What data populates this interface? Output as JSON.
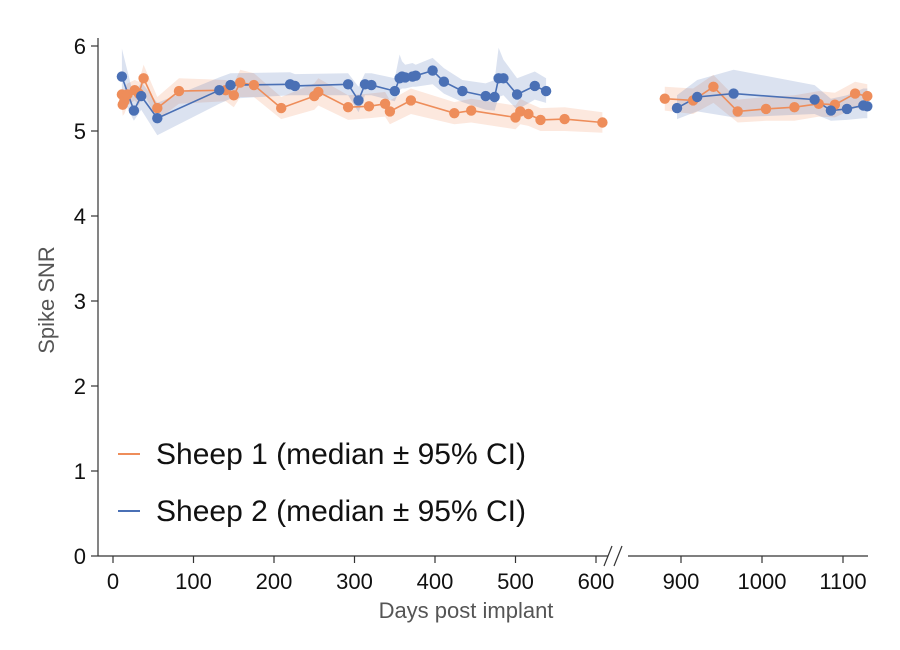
{
  "chart_data": {
    "type": "line",
    "xlabel": "Days post implant",
    "ylabel": "Spike SNR",
    "ylim": [
      0,
      6
    ],
    "yticks": [
      0,
      1,
      2,
      3,
      4,
      5,
      6
    ],
    "x_break": {
      "after": 620,
      "resume": 850
    },
    "xticks_left": [
      0,
      100,
      200,
      300,
      400,
      500,
      600
    ],
    "xticks_right": [
      900,
      1000,
      1100
    ],
    "xlim_left": [
      -10,
      620
    ],
    "xlim_right": [
      850,
      1135
    ],
    "grid": false,
    "legend_position": "bottom-left",
    "colors": {
      "sheep1": "#ee8d5a",
      "sheep2": "#4a70b5",
      "axis": "#333333"
    },
    "series": [
      {
        "name": "Sheep 1 (median ± 95% CI)",
        "color": "#ee8d5a",
        "points": [
          [
            11,
            5.43
          ],
          [
            12,
            5.31
          ],
          [
            14,
            5.35
          ],
          [
            18,
            5.43
          ],
          [
            27,
            5.48
          ],
          [
            32,
            5.44
          ],
          [
            38,
            5.62
          ],
          [
            55,
            5.27
          ],
          [
            82,
            5.47
          ],
          [
            140,
            5.48
          ],
          [
            150,
            5.42
          ],
          [
            158,
            5.57
          ],
          [
            175,
            5.54
          ],
          [
            209,
            5.27
          ],
          [
            250,
            5.41
          ],
          [
            255,
            5.46
          ],
          [
            292,
            5.28
          ],
          [
            318,
            5.29
          ],
          [
            338,
            5.32
          ],
          [
            344,
            5.23
          ],
          [
            370,
            5.36
          ],
          [
            424,
            5.21
          ],
          [
            445,
            5.24
          ],
          [
            500,
            5.16
          ],
          [
            506,
            5.23
          ],
          [
            516,
            5.2
          ],
          [
            531,
            5.13
          ],
          [
            561,
            5.14
          ],
          [
            608,
            5.1
          ],
          [
            880,
            5.38
          ],
          [
            915,
            5.36
          ],
          [
            940,
            5.52
          ],
          [
            970,
            5.23
          ],
          [
            1005,
            5.26
          ],
          [
            1040,
            5.28
          ],
          [
            1070,
            5.32
          ],
          [
            1090,
            5.31
          ],
          [
            1115,
            5.44
          ],
          [
            1130,
            5.41
          ]
        ],
        "ci_lower": [
          5.28,
          5.18,
          5.2,
          5.3,
          5.36,
          5.3,
          5.45,
          5.13,
          5.32,
          5.35,
          5.28,
          5.4,
          5.4,
          5.14,
          5.25,
          5.3,
          5.13,
          5.15,
          5.17,
          5.08,
          5.2,
          5.08,
          5.1,
          5.02,
          5.08,
          5.06,
          5.0,
          5.0,
          4.98,
          5.24,
          5.2,
          5.33,
          5.1,
          5.12,
          5.12,
          5.17,
          5.16,
          5.27,
          5.26
        ],
        "ci_upper": [
          5.56,
          5.44,
          5.5,
          5.56,
          5.6,
          5.58,
          5.78,
          5.4,
          5.62,
          5.6,
          5.56,
          5.72,
          5.68,
          5.4,
          5.56,
          5.62,
          5.42,
          5.44,
          5.46,
          5.36,
          5.5,
          5.34,
          5.38,
          5.3,
          5.38,
          5.33,
          5.27,
          5.28,
          5.22,
          5.52,
          5.5,
          5.66,
          5.37,
          5.4,
          5.42,
          5.47,
          5.45,
          5.58,
          5.55
        ]
      },
      {
        "name": "Sheep 2 (median ± 95% CI)",
        "color": "#4a70b5",
        "points": [
          [
            11,
            5.64
          ],
          [
            26,
            5.24
          ],
          [
            35,
            5.41
          ],
          [
            55,
            5.15
          ],
          [
            132,
            5.48
          ],
          [
            146,
            5.54
          ],
          [
            220,
            5.55
          ],
          [
            226,
            5.53
          ],
          [
            292,
            5.55
          ],
          [
            305,
            5.36
          ],
          [
            313,
            5.55
          ],
          [
            321,
            5.54
          ],
          [
            350,
            5.47
          ],
          [
            356,
            5.62
          ],
          [
            359,
            5.64
          ],
          [
            363,
            5.63
          ],
          [
            372,
            5.64
          ],
          [
            376,
            5.65
          ],
          [
            397,
            5.71
          ],
          [
            411,
            5.58
          ],
          [
            434,
            5.47
          ],
          [
            463,
            5.41
          ],
          [
            474,
            5.4
          ],
          [
            479,
            5.62
          ],
          [
            485,
            5.62
          ],
          [
            502,
            5.43
          ],
          [
            524,
            5.53
          ],
          [
            538,
            5.47
          ],
          [
            895,
            5.27
          ],
          [
            920,
            5.4
          ],
          [
            965,
            5.44
          ],
          [
            1065,
            5.37
          ],
          [
            1085,
            5.24
          ],
          [
            1105,
            5.26
          ],
          [
            1125,
            5.3
          ],
          [
            1130,
            5.29
          ]
        ],
        "ci_lower": [
          5.4,
          5.12,
          5.25,
          4.95,
          5.32,
          5.38,
          5.42,
          5.42,
          5.42,
          5.22,
          5.42,
          5.42,
          5.35,
          5.48,
          5.5,
          5.5,
          5.52,
          5.52,
          5.55,
          5.44,
          5.34,
          5.25,
          5.24,
          5.4,
          5.42,
          5.25,
          5.37,
          5.33,
          5.14,
          5.23,
          5.16,
          5.2,
          5.12,
          5.13,
          5.15,
          5.15
        ],
        "ci_upper": [
          5.97,
          5.4,
          5.58,
          5.33,
          5.63,
          5.68,
          5.69,
          5.67,
          5.68,
          5.52,
          5.68,
          5.68,
          5.62,
          5.9,
          5.82,
          5.78,
          5.8,
          5.78,
          5.86,
          5.74,
          5.6,
          5.56,
          5.6,
          5.98,
          5.84,
          5.62,
          5.7,
          5.62,
          5.42,
          5.6,
          5.72,
          5.54,
          5.38,
          5.42,
          5.5,
          5.5
        ]
      }
    ]
  }
}
